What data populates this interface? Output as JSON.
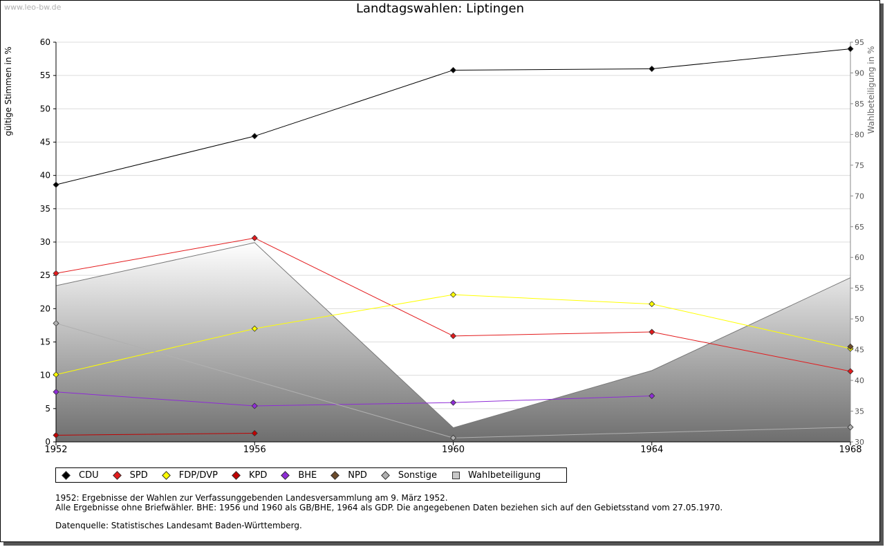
{
  "watermark": "www.leo-bw.de",
  "chart_data": {
    "type": "line",
    "title": "Landtagswahlen: Liptingen",
    "ylabel": "gültige Stimmen in %",
    "y2label": "Wahlbeteiligung in %",
    "ylim": [
      0,
      60
    ],
    "y2lim": [
      30,
      95
    ],
    "yticks": [
      0,
      5,
      10,
      15,
      20,
      25,
      30,
      35,
      40,
      45,
      50,
      55,
      60
    ],
    "y2ticks": [
      30,
      35,
      40,
      45,
      50,
      55,
      60,
      65,
      70,
      75,
      80,
      85,
      90,
      95
    ],
    "x": [
      1952,
      1956,
      1960,
      1964,
      1968
    ],
    "grid": true,
    "legend_position": "bottom",
    "series": [
      {
        "name": "CDU",
        "color": "#000000",
        "values": [
          38.6,
          45.9,
          55.8,
          56.0,
          59.0
        ]
      },
      {
        "name": "SPD",
        "color": "#e31a1c",
        "values": [
          25.3,
          30.6,
          15.9,
          16.5,
          10.6
        ]
      },
      {
        "name": "FDP/DVP",
        "color": "#ffff00",
        "values": [
          10.1,
          17.0,
          22.1,
          20.7,
          14.0
        ]
      },
      {
        "name": "KPD",
        "color": "#c00000",
        "values": [
          1.0,
          1.3,
          null,
          null,
          null
        ]
      },
      {
        "name": "BHE",
        "color": "#8e2bd6",
        "values": [
          7.5,
          5.4,
          5.9,
          6.9,
          null
        ]
      },
      {
        "name": "NPD",
        "color": "#6b4a2a",
        "values": [
          null,
          null,
          null,
          null,
          14.3
        ]
      },
      {
        "name": "Sonstige",
        "color": "#b0b0b0",
        "values": [
          17.8,
          null,
          0.6,
          null,
          2.2
        ]
      }
    ],
    "turnout": {
      "name": "Wahlbeteiligung",
      "axis": "right",
      "values": [
        55.4,
        62.4,
        32.3,
        41.6,
        56.7
      ]
    }
  },
  "notes": [
    "1952: Ergebnisse der Wahlen zur Verfassunggebenden Landesversammlung am 9. März 1952.",
    "Alle Ergebnisse ohne Briefwähler. BHE: 1956 und 1960 als GB/BHE, 1964 als GDP. Die angegebenen Daten beziehen sich auf den Gebietsstand vom 27.05.1970.",
    "Datenquelle: Statistisches Landesamt Baden-Württemberg."
  ]
}
